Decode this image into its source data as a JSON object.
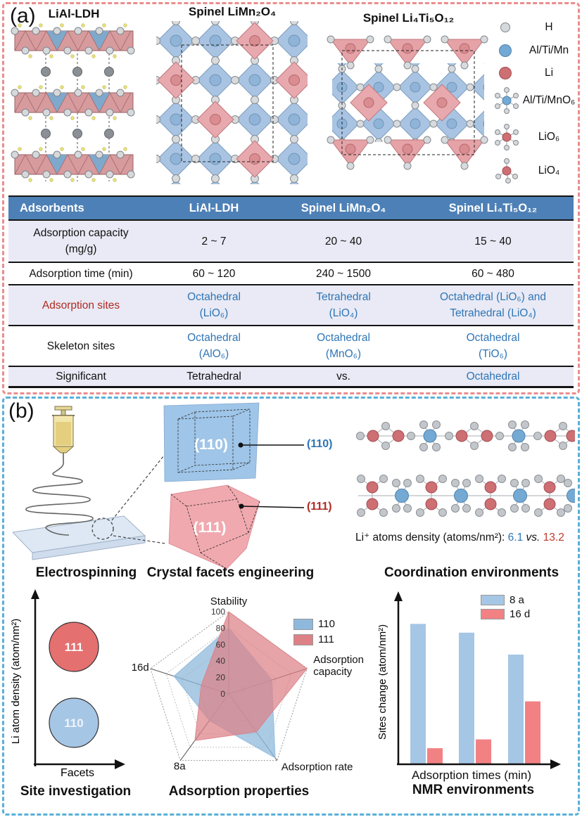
{
  "panel_a": {
    "label": "(a)",
    "titles": {
      "ldh": "LiAl-LDH",
      "lmo": "Spinel LiMn₂O₄",
      "lto": "Spinel Li₄Ti₅O₁₂"
    },
    "legend": {
      "items": [
        {
          "label": "H"
        },
        {
          "label": "Al/Ti/Mn"
        },
        {
          "label": "Li"
        },
        {
          "label": "Al/Ti/MnO₆"
        },
        {
          "label": "LiO₆"
        },
        {
          "label": "LiO₄"
        }
      ]
    },
    "table": {
      "header": {
        "c1": "Adsorbents",
        "c2": "LiAl-LDH",
        "c3": "Spinel LiMn₂O₄",
        "c4": "Spinel Li₄Ti₅O₁₂"
      },
      "rows": [
        {
          "label": "Adsorption capacity",
          "label2": "(mg/g)",
          "c2": "2 ~ 7",
          "c3": "20 ~ 40",
          "c4": "15 ~ 40"
        },
        {
          "label": "Adsorption time (min)",
          "c2": "60 ~ 120",
          "c3": "240 ~ 1500",
          "c4": "60 ~ 480"
        },
        {
          "label": "Adsorption sites",
          "c2": "Octahedral",
          "c2b": "(LiO₆)",
          "c3": "Tetrahedral",
          "c3b": "(LiO₄)",
          "c4": "Octahedral (LiO₆) and",
          "c4b": "Tetrahedral (LiO₄)"
        },
        {
          "label": "Skeleton sites",
          "c2": "Octahedral",
          "c2b": "(AlO₆)",
          "c3": "Octahedral",
          "c3b": "(MnO₆)",
          "c4": "Octahedral",
          "c4b": "(TiO₆)"
        },
        {
          "label": "Significant",
          "c2": "Tetrahedral",
          "c3": "vs.",
          "c4": "Octahedral"
        }
      ]
    }
  },
  "panel_b": {
    "label": "(b)",
    "headings": {
      "electrospinning": "Electrospinning",
      "facets": "Crystal facets engineering",
      "coordination": "Coordination environments"
    },
    "facets": {
      "blue_face": "(110)",
      "red_face": "(111)",
      "blue_callout": "(110)",
      "red_callout": "(111)"
    },
    "density": {
      "prefix": "Li⁺ atoms density (atoms/nm²):",
      "value_110": "6.1",
      "vs": "vs.",
      "value_111": "13.2"
    }
  },
  "colors": {
    "accent_blue": "#2e75b6",
    "accent_red": "#b02a20",
    "table_header_blue": "#4d80b6",
    "row_lavender": "#e9eaf5",
    "panel_a_border": "#ec8d8d",
    "panel_b_border": "#58b0d8"
  },
  "chart_data": [
    {
      "type": "scatter",
      "title": "Site investigation",
      "xlabel": "Facets",
      "ylabel": "Li atom density (atom/nm²)",
      "qualitative": true,
      "points": [
        {
          "label": "111",
          "color": "#e57070",
          "x": "facet 111",
          "y": "high"
        },
        {
          "label": "110",
          "color": "#a6c6e5",
          "x": "facet 110",
          "y": "low"
        }
      ]
    },
    {
      "type": "radar",
      "title": "Adsorption properties",
      "categories": [
        "Stability",
        "Adsorption capacity",
        "Adsorption rate",
        "8a",
        "16d"
      ],
      "radial_ticks": [
        0,
        20,
        40,
        60,
        80,
        100
      ],
      "range": [
        0,
        100
      ],
      "legend_position": "top-right",
      "grid": "dotted-pentagon",
      "series": [
        {
          "name": "110",
          "color": "#8fb9dc",
          "fill_opacity": 0.75,
          "values": [
            80,
            55,
            96,
            40,
            70
          ]
        },
        {
          "name": "111",
          "color": "#dc8186",
          "fill_opacity": 0.72,
          "values": [
            100,
            100,
            57,
            70,
            35
          ]
        }
      ]
    },
    {
      "type": "bar",
      "title": "NMR environments",
      "xlabel": "Adsorption times (min)",
      "ylabel": "Sites change (atom/nm²)",
      "categories": [
        "",
        "",
        ""
      ],
      "x_tick_labels_visible": false,
      "y_tick_labels_visible": false,
      "ylim": [
        0,
        100
      ],
      "series": [
        {
          "name": "8 a",
          "color": "#a6c6e5",
          "values": [
            96,
            90,
            75
          ]
        },
        {
          "name": "16 d",
          "color": "#f28184",
          "values": [
            11,
            17,
            43
          ]
        }
      ]
    }
  ]
}
